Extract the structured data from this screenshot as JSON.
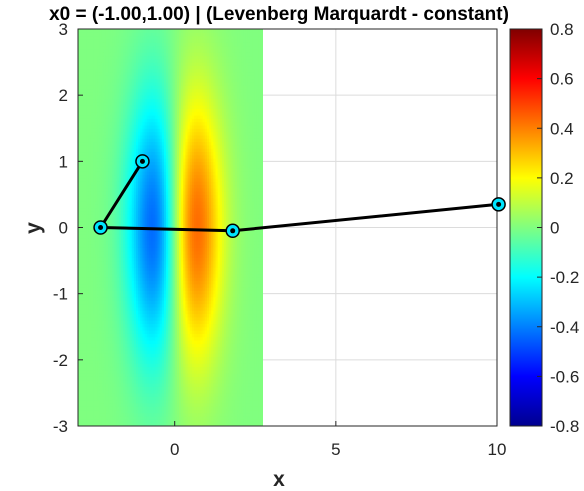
{
  "chart_data": {
    "type": "contour",
    "title": "x0 = (-1.00,1.00) | (Levenberg Marquardt - constant)",
    "xlabel": "x",
    "ylabel": "y",
    "xlim": [
      -3,
      10
    ],
    "ylim": [
      -3,
      3
    ],
    "x_ticks": [
      "0",
      "5",
      "10"
    ],
    "y_ticks": [
      "3",
      "2",
      "1",
      "0",
      "-1",
      "-2",
      "-3"
    ],
    "grid": true,
    "surface": {
      "function": "x*exp(-x^2-(y/2)^2)",
      "x_range": [
        -3,
        3
      ],
      "y_range": [
        -3,
        3
      ]
    },
    "optimization_path": {
      "name": "Levenberg Marquardt - constant",
      "x": [
        -1.0,
        -2.3,
        1.8,
        10.05
      ],
      "y": [
        1.0,
        0.0,
        -0.05,
        0.35
      ]
    },
    "colorbar": {
      "range": [
        -0.8,
        0.8
      ],
      "ticks": [
        "0.8",
        "0.6",
        "0.4",
        "0.2",
        "0",
        "-0.2",
        "-0.4",
        "-0.6",
        "-0.8"
      ],
      "colormap": "jet"
    }
  }
}
